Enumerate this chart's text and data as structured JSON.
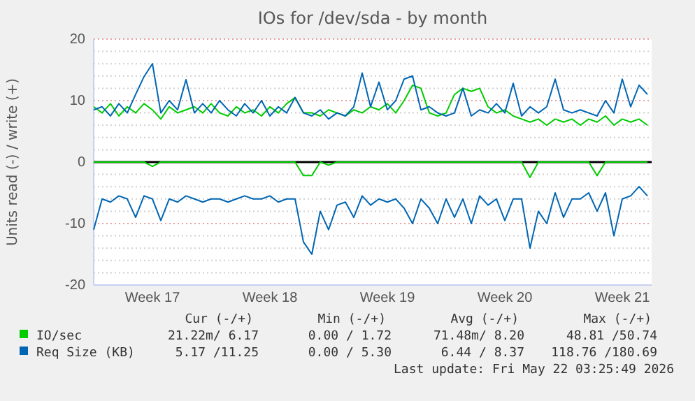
{
  "chart_data": {
    "type": "line",
    "title": "IOs for /dev/sda - by month",
    "ylabel": "Units read (-) / write (+)",
    "categories": [
      null,
      null,
      null,
      null,
      null,
      null,
      null,
      "Week 17",
      null,
      null,
      null,
      null,
      null,
      null,
      null,
      null,
      null,
      null,
      null,
      null,
      null,
      "Week 18",
      null,
      null,
      null,
      null,
      null,
      null,
      null,
      null,
      null,
      null,
      null,
      null,
      null,
      "Week 19",
      null,
      null,
      null,
      null,
      null,
      null,
      null,
      null,
      null,
      null,
      null,
      null,
      null,
      "Week 20",
      null,
      null,
      null,
      null,
      null,
      null,
      null,
      null,
      null,
      null,
      null,
      null,
      null,
      "Week 21",
      null,
      null,
      null
    ],
    "ylim": [
      -20,
      20
    ],
    "yticks": [
      -20,
      {
        "value": -18,
        "label": null
      },
      {
        "value": -16,
        "label": null
      },
      {
        "value": -14,
        "label": null
      },
      {
        "value": -12,
        "label": null
      },
      -10,
      {
        "value": -8,
        "label": null
      },
      {
        "value": -6,
        "label": null
      },
      {
        "value": -4,
        "label": null
      },
      {
        "value": -2,
        "label": null
      },
      0,
      {
        "value": 2,
        "label": null
      },
      {
        "value": 4,
        "label": null
      },
      {
        "value": 6,
        "label": null
      },
      {
        "value": 8,
        "label": null
      },
      10,
      {
        "value": 12,
        "label": null
      },
      {
        "value": 14,
        "label": null
      },
      {
        "value": 16,
        "label": null
      },
      {
        "value": 18,
        "label": null
      },
      20
    ],
    "grid": "y",
    "legend": "bottom",
    "ref_lines": [
      {
        "axis": "y",
        "value": 0,
        "color": "#000000"
      }
    ],
    "series": [
      {
        "name": "IO/sec",
        "color": "#00cc00",
        "values": [
          9,
          8,
          9.5,
          7.5,
          9,
          8,
          9.5,
          8.5,
          7,
          9,
          8,
          8.5,
          9,
          8,
          9.5,
          8,
          7.5,
          9,
          8,
          8.5,
          7.5,
          9,
          8,
          9.5,
          10.5,
          8,
          8,
          7.5,
          8.5,
          8,
          7.5,
          8.5,
          8,
          9,
          8.5,
          9.5,
          8,
          10,
          12.5,
          12,
          8,
          7.5,
          8,
          11,
          12,
          11.5,
          12,
          9,
          8,
          8.5,
          7.5,
          7,
          6.5,
          7,
          6,
          7,
          6.5,
          7,
          6,
          7,
          6.5,
          7.5,
          6,
          7,
          6.5,
          7,
          6
        ]
      },
      {
        "color": "#00cc00",
        "values": [
          0,
          0,
          0,
          0,
          0,
          0,
          0,
          -0.7,
          0,
          0,
          0,
          0,
          0,
          0,
          0,
          0,
          0,
          0,
          0,
          0,
          0,
          0,
          0,
          0,
          0,
          -2.2,
          -2.2,
          0,
          -0.5,
          0,
          0,
          0,
          0,
          0,
          0,
          0,
          0,
          0,
          0,
          0,
          0,
          0,
          0,
          0,
          0,
          0,
          0,
          0,
          0,
          0,
          0,
          0,
          -2.5,
          0,
          0,
          0,
          0,
          0,
          0,
          0,
          -2.2,
          0,
          0,
          0,
          0,
          0,
          0
        ]
      },
      {
        "name": "Req Size (KB)",
        "color": "#0066b3",
        "values": [
          8.5,
          9,
          7.5,
          9.5,
          8,
          11,
          13.9,
          16,
          8,
          10,
          8.5,
          13.4,
          8,
          9.5,
          8,
          10,
          8.5,
          7.5,
          9.5,
          8,
          10,
          7.5,
          9,
          8,
          10.5,
          8,
          7.5,
          8.5,
          7,
          8,
          7.5,
          9,
          14.5,
          9,
          13,
          8.5,
          10,
          13.5,
          14,
          8.5,
          9,
          8,
          7.5,
          8,
          12,
          7.5,
          8.5,
          8,
          9.5,
          8,
          12.8,
          7.5,
          9,
          8,
          9,
          13.5,
          8.5,
          8,
          8.5,
          8,
          7.5,
          10,
          8,
          13.5,
          9,
          12.5,
          11
        ]
      },
      {
        "color": "#0066b3",
        "values": [
          -11,
          -6,
          -6.5,
          -5.5,
          -6,
          -9,
          -5.5,
          -6,
          -9.5,
          -6,
          -6.5,
          -5.5,
          -6,
          -6.5,
          -6,
          -6,
          -6.5,
          -6,
          -5.5,
          -6,
          -6,
          -5.5,
          -6.5,
          -6,
          -6,
          -13,
          -15,
          -8,
          -11,
          -7,
          -6.5,
          -9,
          -5.5,
          -7,
          -6,
          -6.5,
          -6,
          -7.5,
          -10,
          -6,
          -7.5,
          -10,
          -6,
          -9,
          -6,
          -10,
          -5.5,
          -7,
          -6,
          -9.5,
          -6,
          -6,
          -14,
          -8,
          -10,
          -5,
          -9,
          -6,
          -6,
          -5,
          -8,
          -5,
          -12,
          -6,
          -5.5,
          -4,
          -5.5
        ]
      }
    ],
    "annotations": [
      "Cur (-/+)",
      "Min (-/+)",
      "Avg (-/+)",
      "Max (-/+)",
      "21.22m/ 6.17",
      "0.00 / 1.72",
      "71.48m/ 8.20",
      "48.81 /50.74",
      "5.17 /11.25",
      "0.00 / 5.30",
      "6.44 / 8.37",
      "118.76 /180.69",
      "Last update: Fri May 22 03:25:49 2026"
    ]
  }
}
